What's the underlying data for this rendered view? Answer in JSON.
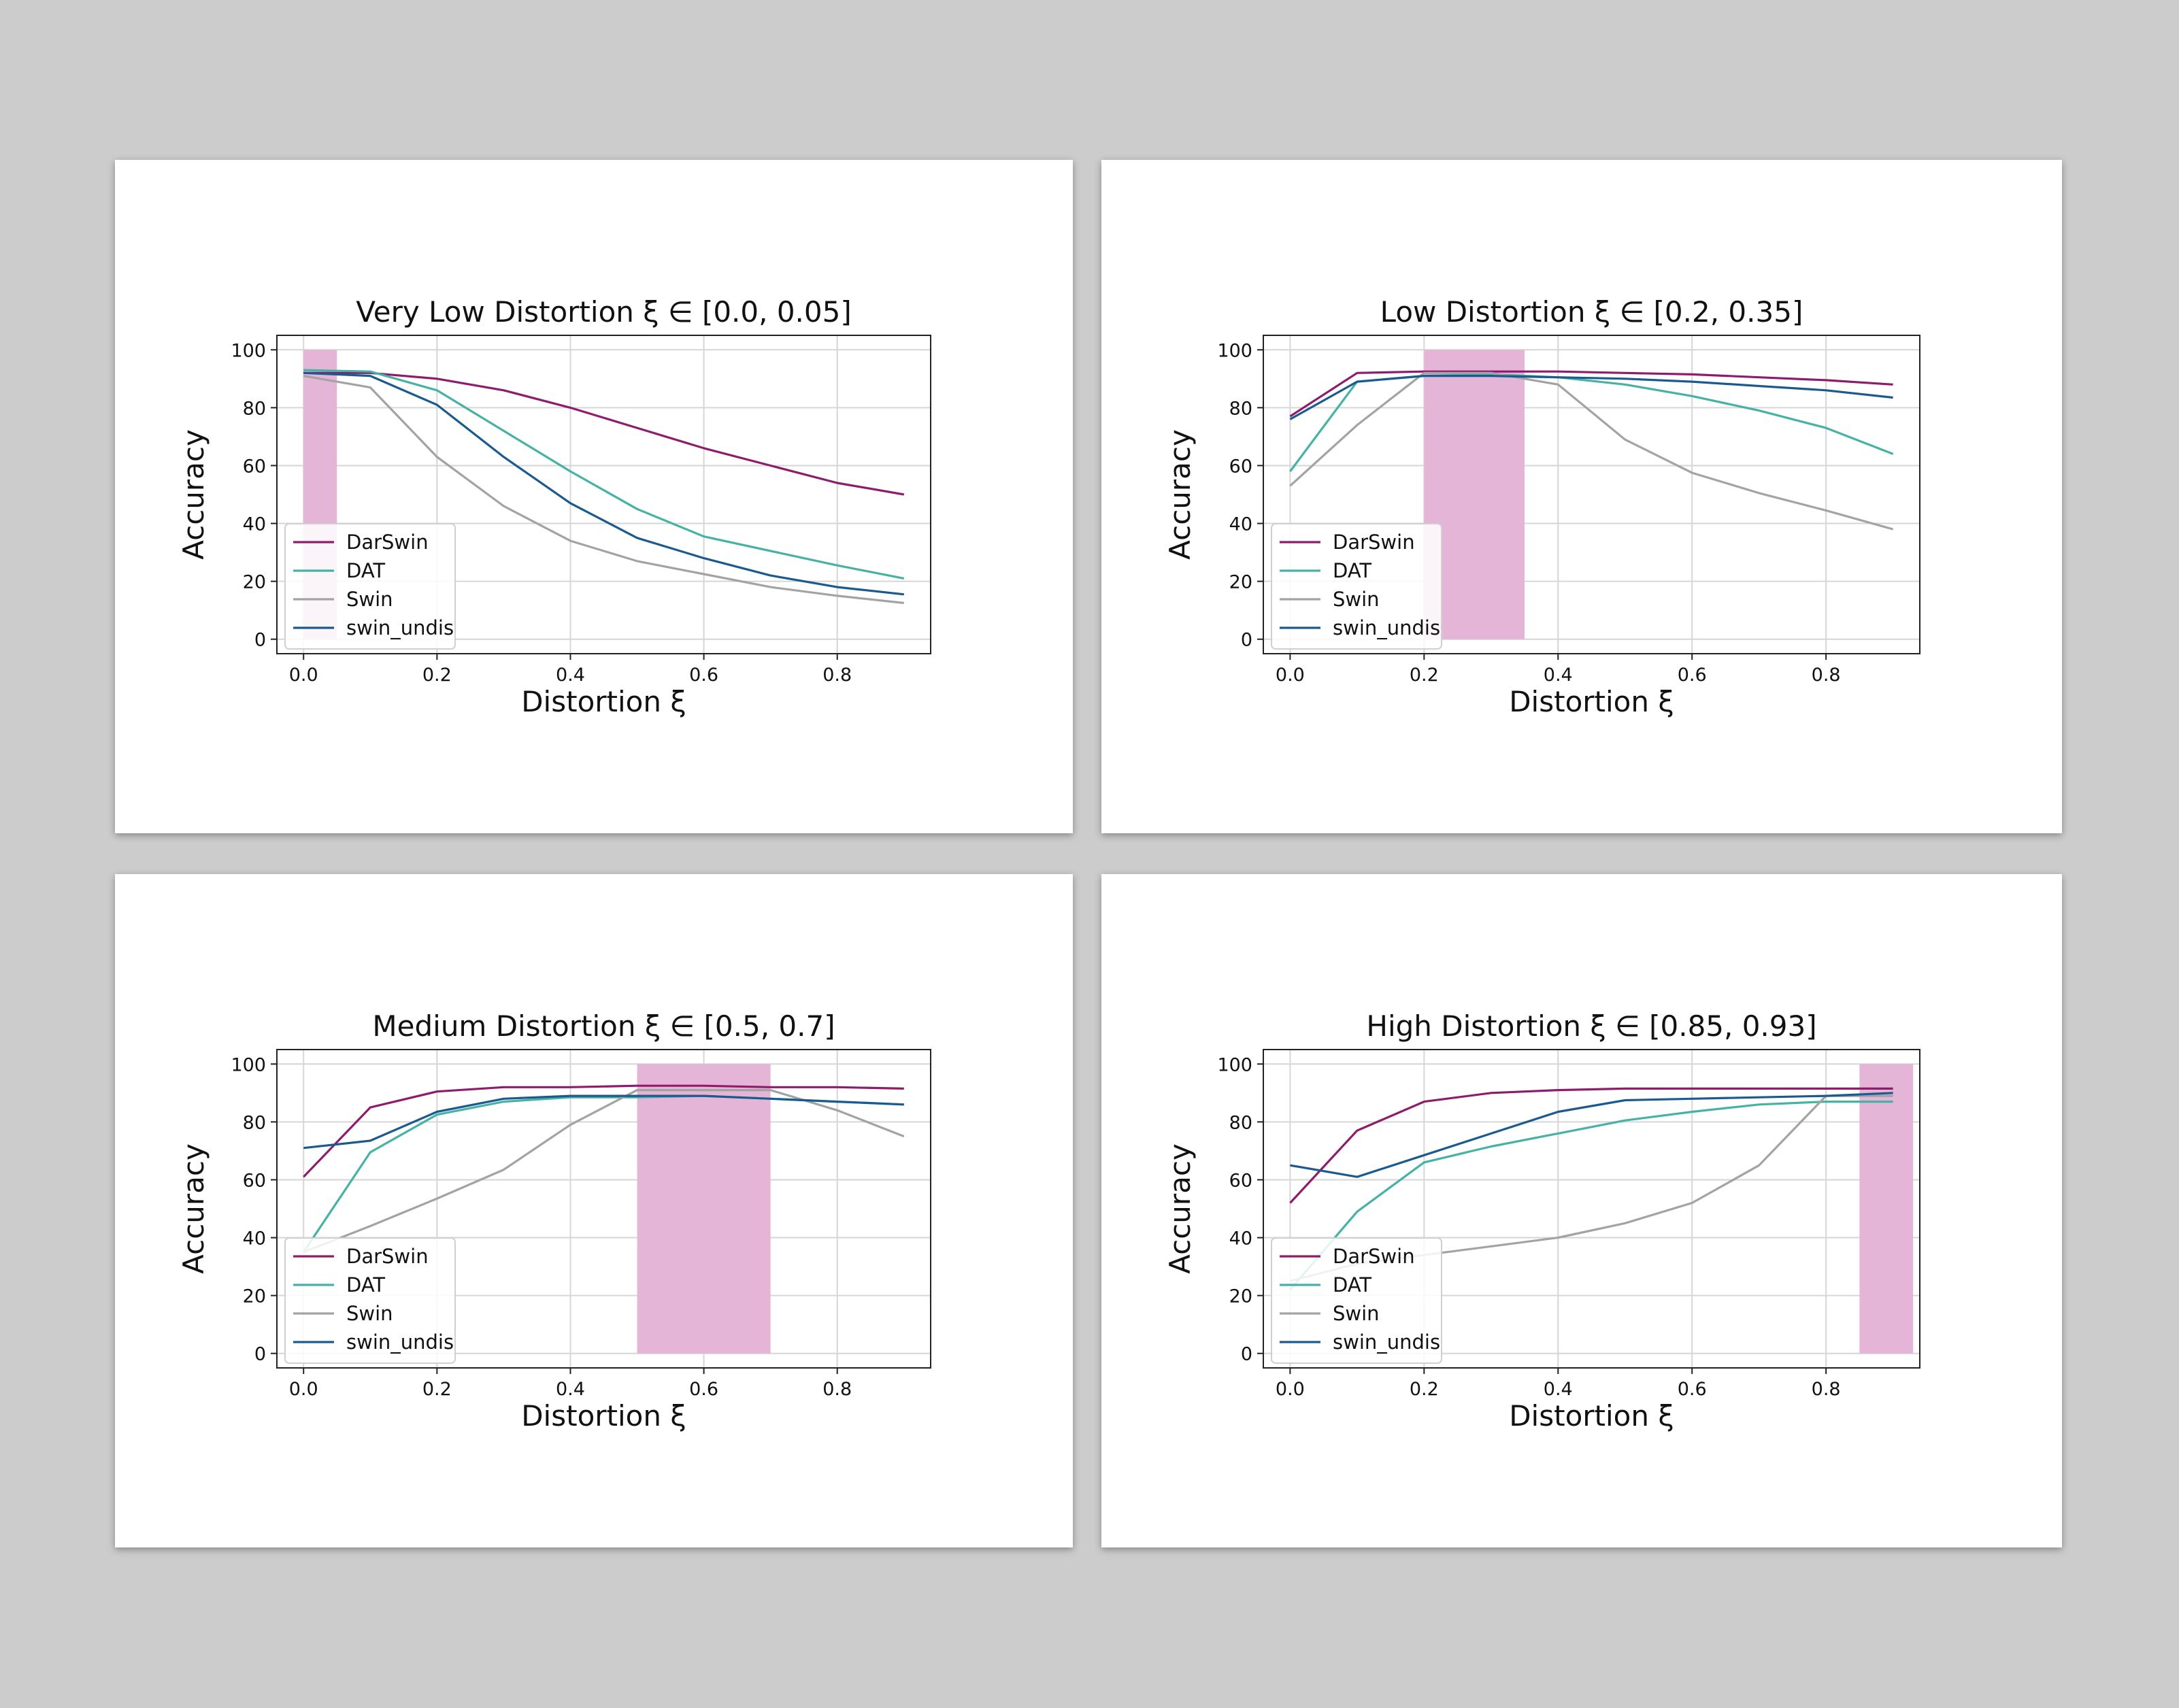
{
  "chart_data": [
    {
      "type": "line",
      "title": "Very Low Distortion ξ ∈ [0.0, 0.05]",
      "xlabel": "Distortion ξ",
      "ylabel": "Accuracy",
      "xlim": [
        -0.04,
        0.94
      ],
      "ylim": [
        -5,
        105
      ],
      "xticks": [
        "0.0",
        "0.2",
        "0.4",
        "0.6",
        "0.8"
      ],
      "yticks": [
        "0",
        "20",
        "40",
        "60",
        "80",
        "100"
      ],
      "grid": true,
      "legend_position": "lower-left",
      "highlight": {
        "x_range": [
          0.0,
          0.05
        ],
        "y_range": [
          0,
          100
        ],
        "color": "#e5b5d8"
      },
      "x": [
        0.0,
        0.1,
        0.2,
        0.3,
        0.4,
        0.5,
        0.6,
        0.7,
        0.8,
        0.9
      ],
      "series": [
        {
          "name": "DarSwin",
          "color": "#8f1b6c",
          "values": [
            92,
            92,
            90,
            86,
            80,
            73,
            66,
            60,
            54,
            50
          ]
        },
        {
          "name": "DAT",
          "color": "#46b2a5",
          "values": [
            93,
            92.5,
            86,
            72,
            58,
            45,
            35.5,
            30.5,
            25.5,
            21
          ]
        },
        {
          "name": "Swin",
          "color": "#a3a3a3",
          "values": [
            91,
            87,
            63,
            46,
            34,
            27,
            22.5,
            18,
            15,
            12.5
          ]
        },
        {
          "name": "swin_undis",
          "color": "#1b5a8e",
          "values": [
            92,
            91,
            81,
            63,
            47,
            35,
            28,
            22,
            18,
            15.5
          ]
        }
      ]
    },
    {
      "type": "line",
      "title": "Low Distortion ξ ∈ [0.2, 0.35]",
      "xlabel": "Distortion ξ",
      "ylabel": "Accuracy",
      "xlim": [
        -0.04,
        0.94
      ],
      "ylim": [
        -5,
        105
      ],
      "xticks": [
        "0.0",
        "0.2",
        "0.4",
        "0.6",
        "0.8"
      ],
      "yticks": [
        "0",
        "20",
        "40",
        "60",
        "80",
        "100"
      ],
      "grid": true,
      "legend_position": "lower-left",
      "highlight": {
        "x_range": [
          0.2,
          0.35
        ],
        "y_range": [
          0,
          100
        ],
        "color": "#e5b5d8"
      },
      "x": [
        0.0,
        0.1,
        0.2,
        0.3,
        0.4,
        0.5,
        0.6,
        0.7,
        0.8,
        0.9
      ],
      "series": [
        {
          "name": "DarSwin",
          "color": "#8f1b6c",
          "values": [
            77,
            92,
            92.5,
            92.5,
            92.5,
            92,
            91.5,
            90.5,
            89.5,
            88
          ]
        },
        {
          "name": "DAT",
          "color": "#46b2a5",
          "values": [
            58,
            89,
            91,
            91.5,
            90.5,
            88,
            84,
            79,
            73,
            64
          ]
        },
        {
          "name": "Swin",
          "color": "#a3a3a3",
          "values": [
            53,
            74,
            92,
            92,
            88,
            69,
            57.5,
            50.5,
            44.5,
            38
          ]
        },
        {
          "name": "swin_undis",
          "color": "#1b5a8e",
          "values": [
            76,
            89,
            91,
            91,
            90.5,
            90,
            89,
            87.5,
            86,
            83.5
          ]
        }
      ]
    },
    {
      "type": "line",
      "title": "Medium Distortion ξ ∈ [0.5, 0.7]",
      "xlabel": "Distortion ξ",
      "ylabel": "Accuracy",
      "xlim": [
        -0.04,
        0.94
      ],
      "ylim": [
        -5,
        105
      ],
      "xticks": [
        "0.0",
        "0.2",
        "0.4",
        "0.6",
        "0.8"
      ],
      "yticks": [
        "0",
        "20",
        "40",
        "60",
        "80",
        "100"
      ],
      "grid": true,
      "legend_position": "lower-left",
      "highlight": {
        "x_range": [
          0.5,
          0.7
        ],
        "y_range": [
          0,
          100
        ],
        "color": "#e5b5d8"
      },
      "x": [
        0.0,
        0.1,
        0.2,
        0.3,
        0.4,
        0.5,
        0.6,
        0.7,
        0.8,
        0.9
      ],
      "series": [
        {
          "name": "DarSwin",
          "color": "#8f1b6c",
          "values": [
            61,
            85,
            90.5,
            92,
            92,
            92.5,
            92.5,
            92,
            92,
            91.5
          ]
        },
        {
          "name": "DAT",
          "color": "#46b2a5",
          "values": [
            35,
            69.5,
            82.5,
            87,
            88.5,
            88.5,
            89,
            88,
            87,
            86
          ]
        },
        {
          "name": "Swin",
          "color": "#a3a3a3",
          "values": [
            35,
            44,
            53.5,
            63.5,
            79,
            91,
            91,
            91,
            84,
            75
          ]
        },
        {
          "name": "swin_undis",
          "color": "#1b5a8e",
          "values": [
            71,
            73.5,
            83.5,
            88,
            89,
            89,
            89,
            88,
            87,
            86
          ]
        }
      ]
    },
    {
      "type": "line",
      "title": "High Distortion ξ ∈ [0.85, 0.93]",
      "xlabel": "Distortion ξ",
      "ylabel": "Accuracy",
      "xlim": [
        -0.04,
        0.94
      ],
      "ylim": [
        -5,
        105
      ],
      "xticks": [
        "0.0",
        "0.2",
        "0.4",
        "0.6",
        "0.8"
      ],
      "yticks": [
        "0",
        "20",
        "40",
        "60",
        "80",
        "100"
      ],
      "grid": true,
      "legend_position": "lower-left",
      "highlight": {
        "x_range": [
          0.85,
          0.93
        ],
        "y_range": [
          0,
          100
        ],
        "color": "#e5b5d8"
      },
      "x": [
        0.0,
        0.1,
        0.2,
        0.3,
        0.4,
        0.5,
        0.6,
        0.7,
        0.8,
        0.9
      ],
      "series": [
        {
          "name": "DarSwin",
          "color": "#8f1b6c",
          "values": [
            52,
            77,
            87,
            90,
            91,
            91.5,
            91.5,
            91.5,
            91.5,
            91.5
          ]
        },
        {
          "name": "DAT",
          "color": "#46b2a5",
          "values": [
            22,
            49,
            66,
            71.5,
            76,
            80.5,
            83.5,
            86,
            87,
            87
          ]
        },
        {
          "name": "Swin",
          "color": "#a3a3a3",
          "values": [
            25,
            31,
            34,
            37,
            40,
            45,
            52,
            65,
            89,
            89
          ]
        },
        {
          "name": "swin_undis",
          "color": "#1b5a8e",
          "values": [
            65,
            61,
            68.5,
            76,
            83.5,
            87.5,
            88,
            88.5,
            89,
            90
          ]
        }
      ]
    }
  ]
}
